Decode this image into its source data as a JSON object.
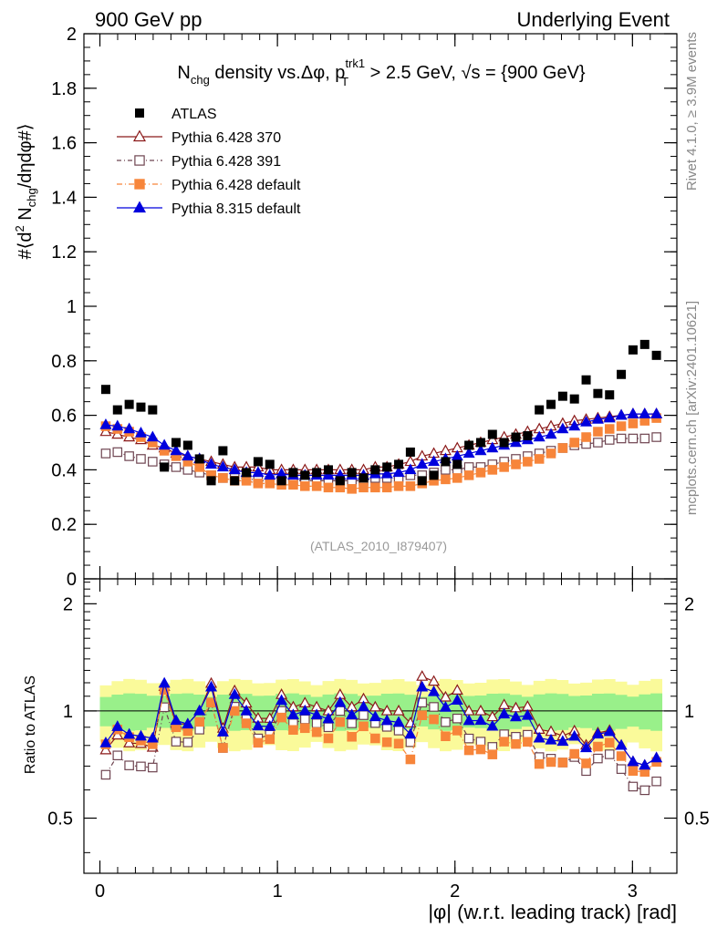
{
  "header": {
    "left": "900 GeV pp",
    "right": "Underlying Event"
  },
  "side_labels": {
    "top": "Rivet 4.1.0, ≥ 3.9M events",
    "bottom": "mcplots.cern.ch [arXiv:2401.10621]"
  },
  "chart_data": {
    "type": "scatter",
    "title": "N_chg density vs.Δφ, p_T^trk1 > 2.5 GeV, √s = {900 GeV}",
    "title_parts": {
      "a": "N",
      "a_sub": "chg",
      "b": " density vs.Δφ, p",
      "b_sup": "trk1",
      "b_sub": "T",
      "c": " > 2.5 GeV, √s = {900 GeV}"
    },
    "ylabel_parts": {
      "a": "#⟨d",
      "sup": "2",
      "b": " N",
      "sub": "chg",
      "c": "/dηdφ#⟩"
    },
    "ratio_ylabel": "Ratio to ATLAS",
    "xlabel": "|φ| (w.r.t. leading track) [rad]",
    "watermark": "(ATLAS_2010_I879407)",
    "xlim": [
      -0.09,
      3.25
    ],
    "ylim": [
      0,
      2
    ],
    "ratio_ylim": [
      0.35,
      2.35
    ],
    "x_ticks": [
      0,
      1,
      2,
      3
    ],
    "y_ticks": [
      0,
      0.2,
      0.4,
      0.6,
      0.8,
      1,
      1.2,
      1.4,
      1.6,
      1.8,
      2
    ],
    "y_tick_labels": [
      "0",
      "0.2",
      "0.4",
      "0.6",
      "0.8",
      "1",
      "1.2",
      "1.4",
      "1.6",
      "1.8",
      "2"
    ],
    "ratio_y_ticks": [
      0.5,
      1,
      2
    ],
    "x": [
      0.033,
      0.099,
      0.165,
      0.231,
      0.297,
      0.363,
      0.429,
      0.495,
      0.561,
      0.627,
      0.693,
      0.759,
      0.825,
      0.891,
      0.957,
      1.023,
      1.089,
      1.155,
      1.221,
      1.287,
      1.353,
      1.419,
      1.485,
      1.551,
      1.617,
      1.683,
      1.749,
      1.815,
      1.881,
      1.947,
      2.013,
      2.079,
      2.145,
      2.211,
      2.277,
      2.343,
      2.409,
      2.475,
      2.541,
      2.607,
      2.673,
      2.739,
      2.805,
      2.871,
      2.937,
      3.003,
      3.069,
      3.135
    ],
    "data": {
      "name": "ATLAS",
      "values": [
        0.695,
        0.62,
        0.64,
        0.63,
        0.62,
        0.41,
        0.5,
        0.49,
        0.44,
        0.36,
        0.47,
        0.36,
        0.39,
        0.43,
        0.42,
        0.36,
        0.39,
        0.38,
        0.39,
        0.4,
        0.36,
        0.39,
        0.37,
        0.4,
        0.41,
        0.42,
        0.465,
        0.36,
        0.38,
        0.43,
        0.42,
        0.49,
        0.5,
        0.53,
        0.5,
        0.52,
        0.525,
        0.62,
        0.64,
        0.67,
        0.66,
        0.73,
        0.68,
        0.675,
        0.75,
        0.84,
        0.86,
        0.82
      ]
    },
    "series": [
      {
        "name": "Pythia 6.428 370",
        "color": "#8b1a1a",
        "marker": "triangle-open",
        "dash": "",
        "values": [
          0.54,
          0.53,
          0.52,
          0.51,
          0.49,
          0.48,
          0.46,
          0.45,
          0.44,
          0.43,
          0.42,
          0.41,
          0.41,
          0.41,
          0.4,
          0.4,
          0.4,
          0.4,
          0.4,
          0.4,
          0.4,
          0.4,
          0.4,
          0.41,
          0.41,
          0.42,
          0.43,
          0.45,
          0.46,
          0.47,
          0.48,
          0.49,
          0.5,
          0.51,
          0.52,
          0.53,
          0.54,
          0.55,
          0.56,
          0.57,
          0.58,
          0.585,
          0.59,
          0.595,
          0.6,
          0.605,
          0.605,
          0.605
        ]
      },
      {
        "name": "Pythia 6.428 391",
        "color": "#6e4450",
        "marker": "square-open",
        "dash": "5,3,1,3",
        "values": [
          0.46,
          0.465,
          0.45,
          0.44,
          0.43,
          0.42,
          0.41,
          0.4,
          0.39,
          0.38,
          0.37,
          0.37,
          0.37,
          0.36,
          0.36,
          0.36,
          0.36,
          0.36,
          0.36,
          0.36,
          0.36,
          0.36,
          0.36,
          0.37,
          0.37,
          0.37,
          0.38,
          0.38,
          0.39,
          0.4,
          0.4,
          0.41,
          0.41,
          0.42,
          0.43,
          0.44,
          0.45,
          0.46,
          0.47,
          0.48,
          0.49,
          0.495,
          0.5,
          0.51,
          0.515,
          0.515,
          0.515,
          0.52
        ]
      },
      {
        "name": "Pythia 6.428 default",
        "color": "#f7853a",
        "marker": "square",
        "dash": "6,3,1,3",
        "values": [
          0.56,
          0.55,
          0.54,
          0.52,
          0.5,
          0.47,
          0.45,
          0.43,
          0.41,
          0.38,
          0.37,
          0.36,
          0.36,
          0.35,
          0.35,
          0.345,
          0.345,
          0.34,
          0.34,
          0.335,
          0.335,
          0.33,
          0.335,
          0.335,
          0.335,
          0.34,
          0.34,
          0.35,
          0.36,
          0.365,
          0.37,
          0.38,
          0.39,
          0.4,
          0.41,
          0.42,
          0.43,
          0.44,
          0.46,
          0.48,
          0.5,
          0.52,
          0.54,
          0.55,
          0.56,
          0.57,
          0.58,
          0.59
        ]
      },
      {
        "name": "Pythia 8.315 default",
        "color": "#0000dd",
        "marker": "triangle",
        "dash": "",
        "values": [
          0.565,
          0.56,
          0.55,
          0.535,
          0.52,
          0.49,
          0.47,
          0.45,
          0.44,
          0.42,
          0.41,
          0.4,
          0.39,
          0.39,
          0.38,
          0.385,
          0.38,
          0.38,
          0.38,
          0.38,
          0.38,
          0.38,
          0.38,
          0.385,
          0.385,
          0.39,
          0.4,
          0.42,
          0.43,
          0.44,
          0.45,
          0.46,
          0.47,
          0.48,
          0.49,
          0.5,
          0.51,
          0.52,
          0.53,
          0.55,
          0.56,
          0.575,
          0.585,
          0.59,
          0.6,
          0.605,
          0.605,
          0.605
        ]
      }
    ],
    "uncertainty_bands": {
      "inner_rel": 0.105,
      "outer_rel": 0.2,
      "inner_color": "#99f08a",
      "outer_color": "#fafa9a"
    },
    "legend_position": "top-left"
  }
}
